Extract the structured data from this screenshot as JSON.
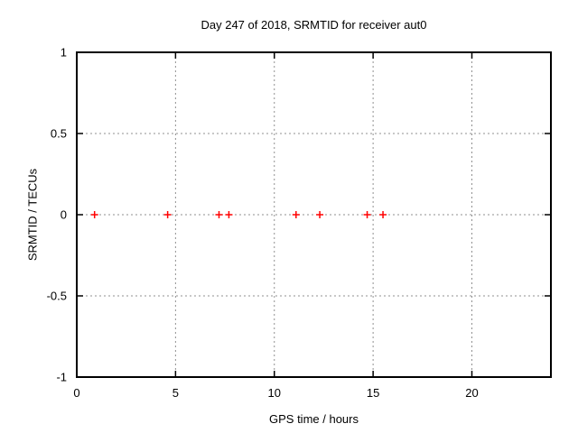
{
  "chart_data": {
    "type": "scatter",
    "title": "Day 247 of 2018, SRMTID for receiver aut0",
    "xlabel": "GPS time / hours",
    "ylabel": "SRMTID / TECUs",
    "xlim": [
      0,
      24
    ],
    "ylim": [
      -1,
      1
    ],
    "xticks": [
      0,
      5,
      10,
      15,
      20
    ],
    "xtick_labels": [
      "0",
      "5",
      "10",
      "15",
      "20"
    ],
    "yticks": [
      1,
      0.5,
      0,
      -0.5,
      -1
    ],
    "ytick_labels": [
      "1",
      "0.5",
      "0",
      "-0.5",
      "-1"
    ],
    "grid": true,
    "legend": "none",
    "marker": "plus",
    "marker_color": "#ff0000",
    "grid_color": "#909090",
    "axis_color": "#000000",
    "background_color": "#ffffff",
    "series": [
      {
        "name": "SRMTID",
        "x": [
          0.9,
          4.6,
          7.2,
          7.7,
          11.1,
          12.3,
          14.7,
          15.5
        ],
        "y": [
          0,
          0,
          0,
          0,
          0,
          0,
          0,
          0
        ]
      }
    ]
  }
}
